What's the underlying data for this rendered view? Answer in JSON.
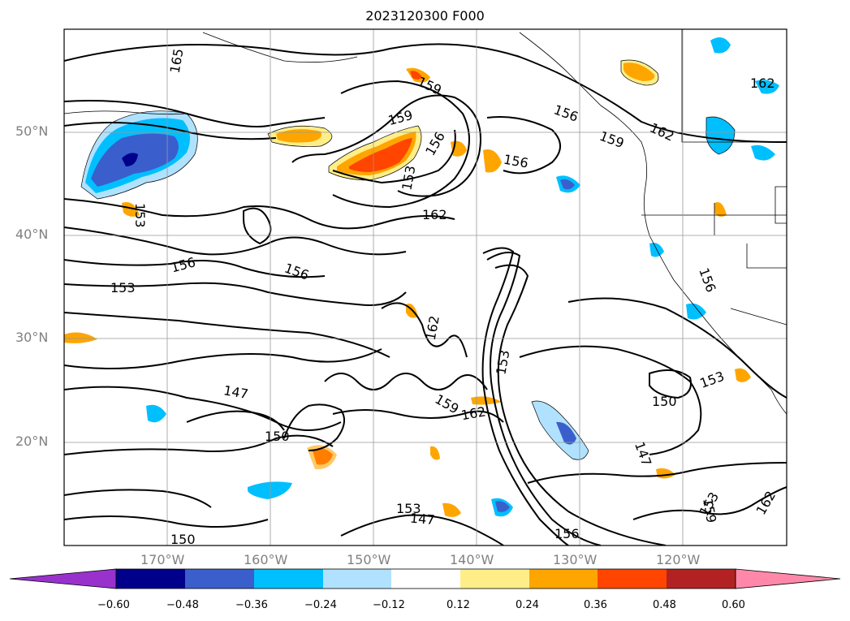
{
  "title": "2023120300 F000",
  "lat_labels": [
    "50°N",
    "40°N",
    "30°N",
    "20°N"
  ],
  "lon_labels": [
    "170°W",
    "160°W",
    "150°W",
    "140°W",
    "130°W",
    "120°W"
  ],
  "contour_labels": [
    "165",
    "162",
    "159",
    "159",
    "156",
    "156",
    "156",
    "156",
    "153",
    "153",
    "153",
    "153",
    "153",
    "150",
    "150",
    "150",
    "147",
    "147",
    "147",
    "162",
    "162",
    "162",
    "159",
    "156",
    "156",
    "153",
    "162",
    "156",
    "159",
    "153",
    "159",
    "162"
  ],
  "colorbar": {
    "ticks": [
      "−0.60",
      "−0.48",
      "−0.36",
      "−0.24",
      "−0.12",
      "0.12",
      "0.24",
      "0.36",
      "0.48",
      "0.60"
    ],
    "colors": [
      "#9932cc",
      "#00008b",
      "#3a5fcd",
      "#00bfff",
      "#b0e2ff",
      "#ffffff",
      "#ffee88",
      "#ffa500",
      "#ff4500",
      "#b22222",
      "#ff88aa"
    ]
  },
  "chart_data": {
    "type": "map-contour",
    "title": "2023120300 F000",
    "lat_range": [
      "10°N",
      "60°N"
    ],
    "lon_range": [
      "180°W",
      "110°W"
    ],
    "contour_levels": [
      147,
      150,
      153,
      156,
      159,
      162,
      165
    ],
    "fill_levels": [
      -0.6,
      -0.48,
      -0.36,
      -0.24,
      -0.12,
      0.12,
      0.24,
      0.36,
      0.48,
      0.6
    ]
  }
}
